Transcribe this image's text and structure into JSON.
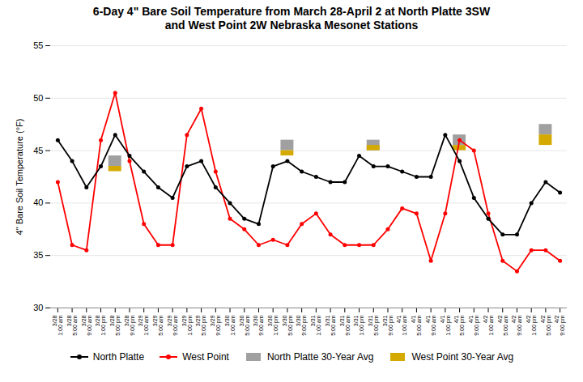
{
  "chart_data": {
    "type": "line",
    "title": "6-Day 4\" Bare Soil Temperature from March 28-April 2 at North Platte 3SW\nand West Point 2W Nebraska Mesonet Stations",
    "y_label": "4\" Bare Soil Temperature (°F)",
    "categories": [
      "3/28\n1:00 am",
      "3/28\n5:00 am",
      "3/28\n9:00 am",
      "3/28\n1:00 pm",
      "3/28\n5:00 pm",
      "3/28\n9:00 pm",
      "3/29\n1:00 am",
      "3/29\n5:00 am",
      "3/29\n9:00 am",
      "3/29\n1:00 pm",
      "3/29\n5:00 pm",
      "3/29\n9:00 pm",
      "3/30\n1:00 am",
      "3/30\n5:00 am",
      "3/30\n9:00 am",
      "3/30\n1:00 pm",
      "3/30\n5:00 pm",
      "3/30\n9:00 pm",
      "3/31\n1:00 am",
      "3/31\n5:00 am",
      "3/31\n9:00 am",
      "3/31\n1:00 pm",
      "3/31\n5:00 pm",
      "3/31\n9:00 pm",
      "4/1\n1:00 am",
      "4/1\n5:00 am",
      "4/1\n9:00 am",
      "4/1\n1:00 pm",
      "4/1\n5:00 pm",
      "4/1\n9:00 pm",
      "4/2\n1:00 am",
      "4/2\n5:00 am",
      "4/2\n9:00 am",
      "4/2\n1:00 pm",
      "4/2\n5:00 pm",
      "4/2\n9:00 pm"
    ],
    "series": [
      {
        "name": "North Platte",
        "type": "line",
        "marker": "circle",
        "color": "#000000",
        "values": [
          46.0,
          44.0,
          41.5,
          43.5,
          46.5,
          44.5,
          43.0,
          41.5,
          40.5,
          43.5,
          44.0,
          41.5,
          40.0,
          38.5,
          38.0,
          43.5,
          44.0,
          43.0,
          42.5,
          42.0,
          42.0,
          44.5,
          43.5,
          43.5,
          43.0,
          42.5,
          42.5,
          46.5,
          44.0,
          40.5,
          38.5,
          37.0,
          37.0,
          40.0,
          42.0,
          41.0
        ]
      },
      {
        "name": "West Point",
        "type": "line",
        "marker": "circle",
        "color": "#ff0000",
        "values": [
          42.0,
          36.0,
          35.5,
          46.0,
          50.5,
          44.0,
          38.0,
          36.0,
          36.0,
          46.5,
          49.0,
          43.0,
          38.5,
          37.5,
          36.0,
          36.5,
          36.0,
          38.0,
          39.0,
          37.0,
          36.0,
          36.0,
          36.0,
          37.5,
          39.5,
          39.0,
          34.5,
          39.0,
          46.0,
          45.0,
          39.0,
          34.5,
          33.5,
          35.5,
          35.5,
          34.5
        ]
      },
      {
        "name": "North Platte 30-Year Avg",
        "type": "range",
        "color": "#a0a0a0",
        "low": [
          null,
          null,
          null,
          null,
          43.5,
          null,
          null,
          null,
          null,
          null,
          null,
          null,
          null,
          null,
          null,
          null,
          45.0,
          null,
          null,
          null,
          null,
          null,
          45.0,
          null,
          null,
          null,
          null,
          null,
          45.5,
          null,
          null,
          null,
          null,
          null,
          46.5,
          null
        ],
        "high": [
          null,
          null,
          null,
          null,
          44.5,
          null,
          null,
          null,
          null,
          null,
          null,
          null,
          null,
          null,
          null,
          null,
          46.0,
          null,
          null,
          null,
          null,
          null,
          46.0,
          null,
          null,
          null,
          null,
          null,
          46.5,
          null,
          null,
          null,
          null,
          null,
          47.5,
          null
        ]
      },
      {
        "name": "West Point 30-Year Avg",
        "type": "range",
        "color": "#d4aa00",
        "low": [
          null,
          null,
          null,
          null,
          43.0,
          null,
          null,
          null,
          null,
          null,
          null,
          null,
          null,
          null,
          null,
          null,
          44.5,
          null,
          null,
          null,
          null,
          null,
          45.0,
          null,
          null,
          null,
          null,
          null,
          45.0,
          null,
          null,
          null,
          null,
          null,
          45.5,
          null
        ],
        "high": [
          null,
          null,
          null,
          null,
          43.5,
          null,
          null,
          null,
          null,
          null,
          null,
          null,
          null,
          null,
          null,
          null,
          45.0,
          null,
          null,
          null,
          null,
          null,
          45.5,
          null,
          null,
          null,
          null,
          null,
          45.5,
          null,
          null,
          null,
          null,
          null,
          46.5,
          null
        ]
      }
    ],
    "ylim": [
      30,
      55
    ],
    "yticks": [
      30,
      35,
      40,
      45,
      50,
      55
    ],
    "grid": true,
    "legend": "bottom"
  }
}
